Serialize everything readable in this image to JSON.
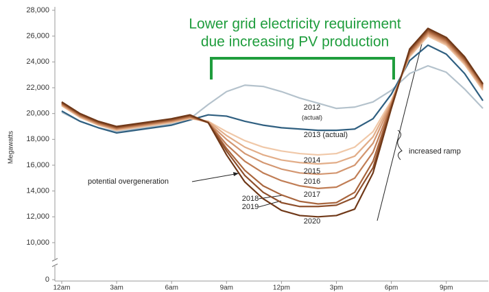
{
  "chart_data": {
    "type": "line",
    "ylabel": "Megawatts",
    "categories": [
      "12am",
      null,
      null,
      "3am",
      null,
      null,
      "6am",
      null,
      null,
      "9am",
      null,
      null,
      "12pm",
      null,
      null,
      "3pm",
      null,
      null,
      "6pm",
      null,
      null,
      "9pm",
      null,
      null
    ],
    "ylim": [
      10000,
      28000
    ],
    "axis_break": true,
    "yticks": [
      0,
      {
        "value": 10000,
        "label": "10,000"
      },
      {
        "value": 12000,
        "label": "12,000"
      },
      {
        "value": 14000,
        "label": "14,000"
      },
      {
        "value": 16000,
        "label": "16,000"
      },
      {
        "value": 18000,
        "label": "18,000"
      },
      {
        "value": 20000,
        "label": "20,000"
      },
      {
        "value": 22000,
        "label": "22,000"
      },
      {
        "value": 24000,
        "label": "24,000"
      },
      {
        "value": 26000,
        "label": "26,000"
      },
      {
        "value": 28000,
        "label": "28,000"
      }
    ],
    "series": [
      {
        "name": "2012",
        "color": "#b4c2cc",
        "values": [
          20100,
          19400,
          18900,
          18600,
          18800,
          19000,
          19200,
          19600,
          20700,
          21700,
          22200,
          22100,
          21700,
          21200,
          20800,
          20400,
          20500,
          20900,
          21800,
          23100,
          23700,
          23200,
          21900,
          20400
        ]
      },
      {
        "name": "2013 (actual)",
        "color": "#2f5f80",
        "values": [
          20200,
          19400,
          18900,
          18500,
          18700,
          18900,
          19100,
          19500,
          19900,
          19800,
          19400,
          19100,
          18900,
          18800,
          18700,
          18700,
          18800,
          19600,
          21500,
          24100,
          25300,
          24600,
          23100,
          21000
        ]
      },
      {
        "name": "2014",
        "color": "#f0c8a8",
        "values": [
          20600,
          19700,
          19100,
          18700,
          18900,
          19100,
          19300,
          19600,
          19400,
          18600,
          17900,
          17400,
          17100,
          16900,
          16800,
          16900,
          17400,
          18600,
          21000,
          24400,
          26000,
          25300,
          23800,
          21800
        ]
      },
      {
        "name": "2015",
        "color": "#e2ad88",
        "values": [
          20650,
          19750,
          19150,
          18750,
          18950,
          19150,
          19350,
          19650,
          19400,
          18300,
          17400,
          16800,
          16400,
          16200,
          16100,
          16200,
          16700,
          18200,
          20900,
          24500,
          26100,
          25400,
          23900,
          21900
        ]
      },
      {
        "name": "2016",
        "color": "#d39670",
        "values": [
          20700,
          19800,
          19200,
          18800,
          19000,
          19200,
          19400,
          19700,
          19300,
          18000,
          16900,
          16200,
          15700,
          15400,
          15300,
          15400,
          16000,
          17700,
          20800,
          24600,
          26200,
          25500,
          24000,
          22000
        ]
      },
      {
        "name": "2017",
        "color": "#c07d55",
        "values": [
          20750,
          19850,
          19250,
          18850,
          19050,
          19250,
          19450,
          19750,
          19300,
          17600,
          16300,
          15400,
          14800,
          14400,
          14200,
          14300,
          15000,
          17000,
          20700,
          24700,
          26300,
          25600,
          24100,
          22100
        ]
      },
      {
        "name": "2018",
        "color": "#a8653d",
        "values": [
          20800,
          19900,
          19300,
          18900,
          19100,
          19300,
          19500,
          19800,
          19300,
          17300,
          15600,
          14400,
          13700,
          13200,
          13000,
          13100,
          13900,
          16300,
          20600,
          24800,
          26400,
          25700,
          24200,
          22200
        ]
      },
      {
        "name": "2019",
        "color": "#8e4f2b",
        "values": [
          20850,
          19950,
          19350,
          18950,
          19150,
          19350,
          19550,
          19850,
          19300,
          17100,
          15200,
          13900,
          13100,
          12800,
          12800,
          12900,
          13500,
          15800,
          20500,
          24900,
          26500,
          25800,
          24300,
          22300
        ]
      },
      {
        "name": "2020",
        "color": "#6f3818",
        "values": [
          20900,
          20000,
          19400,
          19000,
          19200,
          19400,
          19600,
          19900,
          19300,
          16800,
          14700,
          13400,
          12500,
          12100,
          12000,
          12100,
          12600,
          15400,
          20400,
          25000,
          26600,
          25900,
          24400,
          22300
        ]
      }
    ],
    "annotations": [
      "Lower grid electricity requirement",
      "due increasing PV production",
      "(actual)",
      "potential overgeneration",
      "increased ramp"
    ]
  }
}
